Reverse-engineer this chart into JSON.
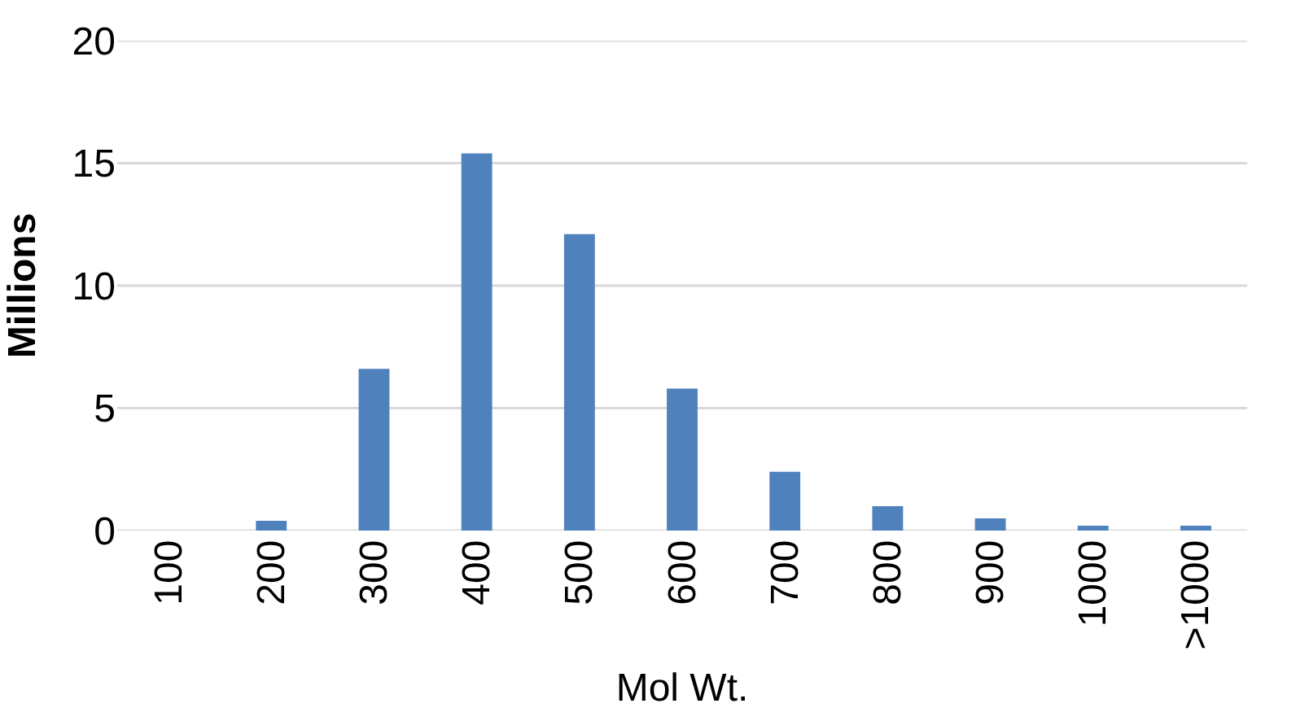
{
  "chart_data": {
    "type": "bar",
    "xlabel": "Mol Wt.",
    "ylabel": "Millions",
    "categories": [
      "100",
      "200",
      "300",
      "400",
      "500",
      "600",
      "700",
      "800",
      "900",
      "1000",
      ">1000"
    ],
    "values": [
      0,
      0.4,
      6.6,
      15.4,
      12.1,
      5.8,
      2.4,
      1.0,
      0.5,
      0.2,
      0.2
    ],
    "color": "#4f81bd",
    "ylim": [
      0,
      20
    ],
    "yticks": [
      0,
      5,
      10,
      15,
      20
    ],
    "grid": "y"
  }
}
